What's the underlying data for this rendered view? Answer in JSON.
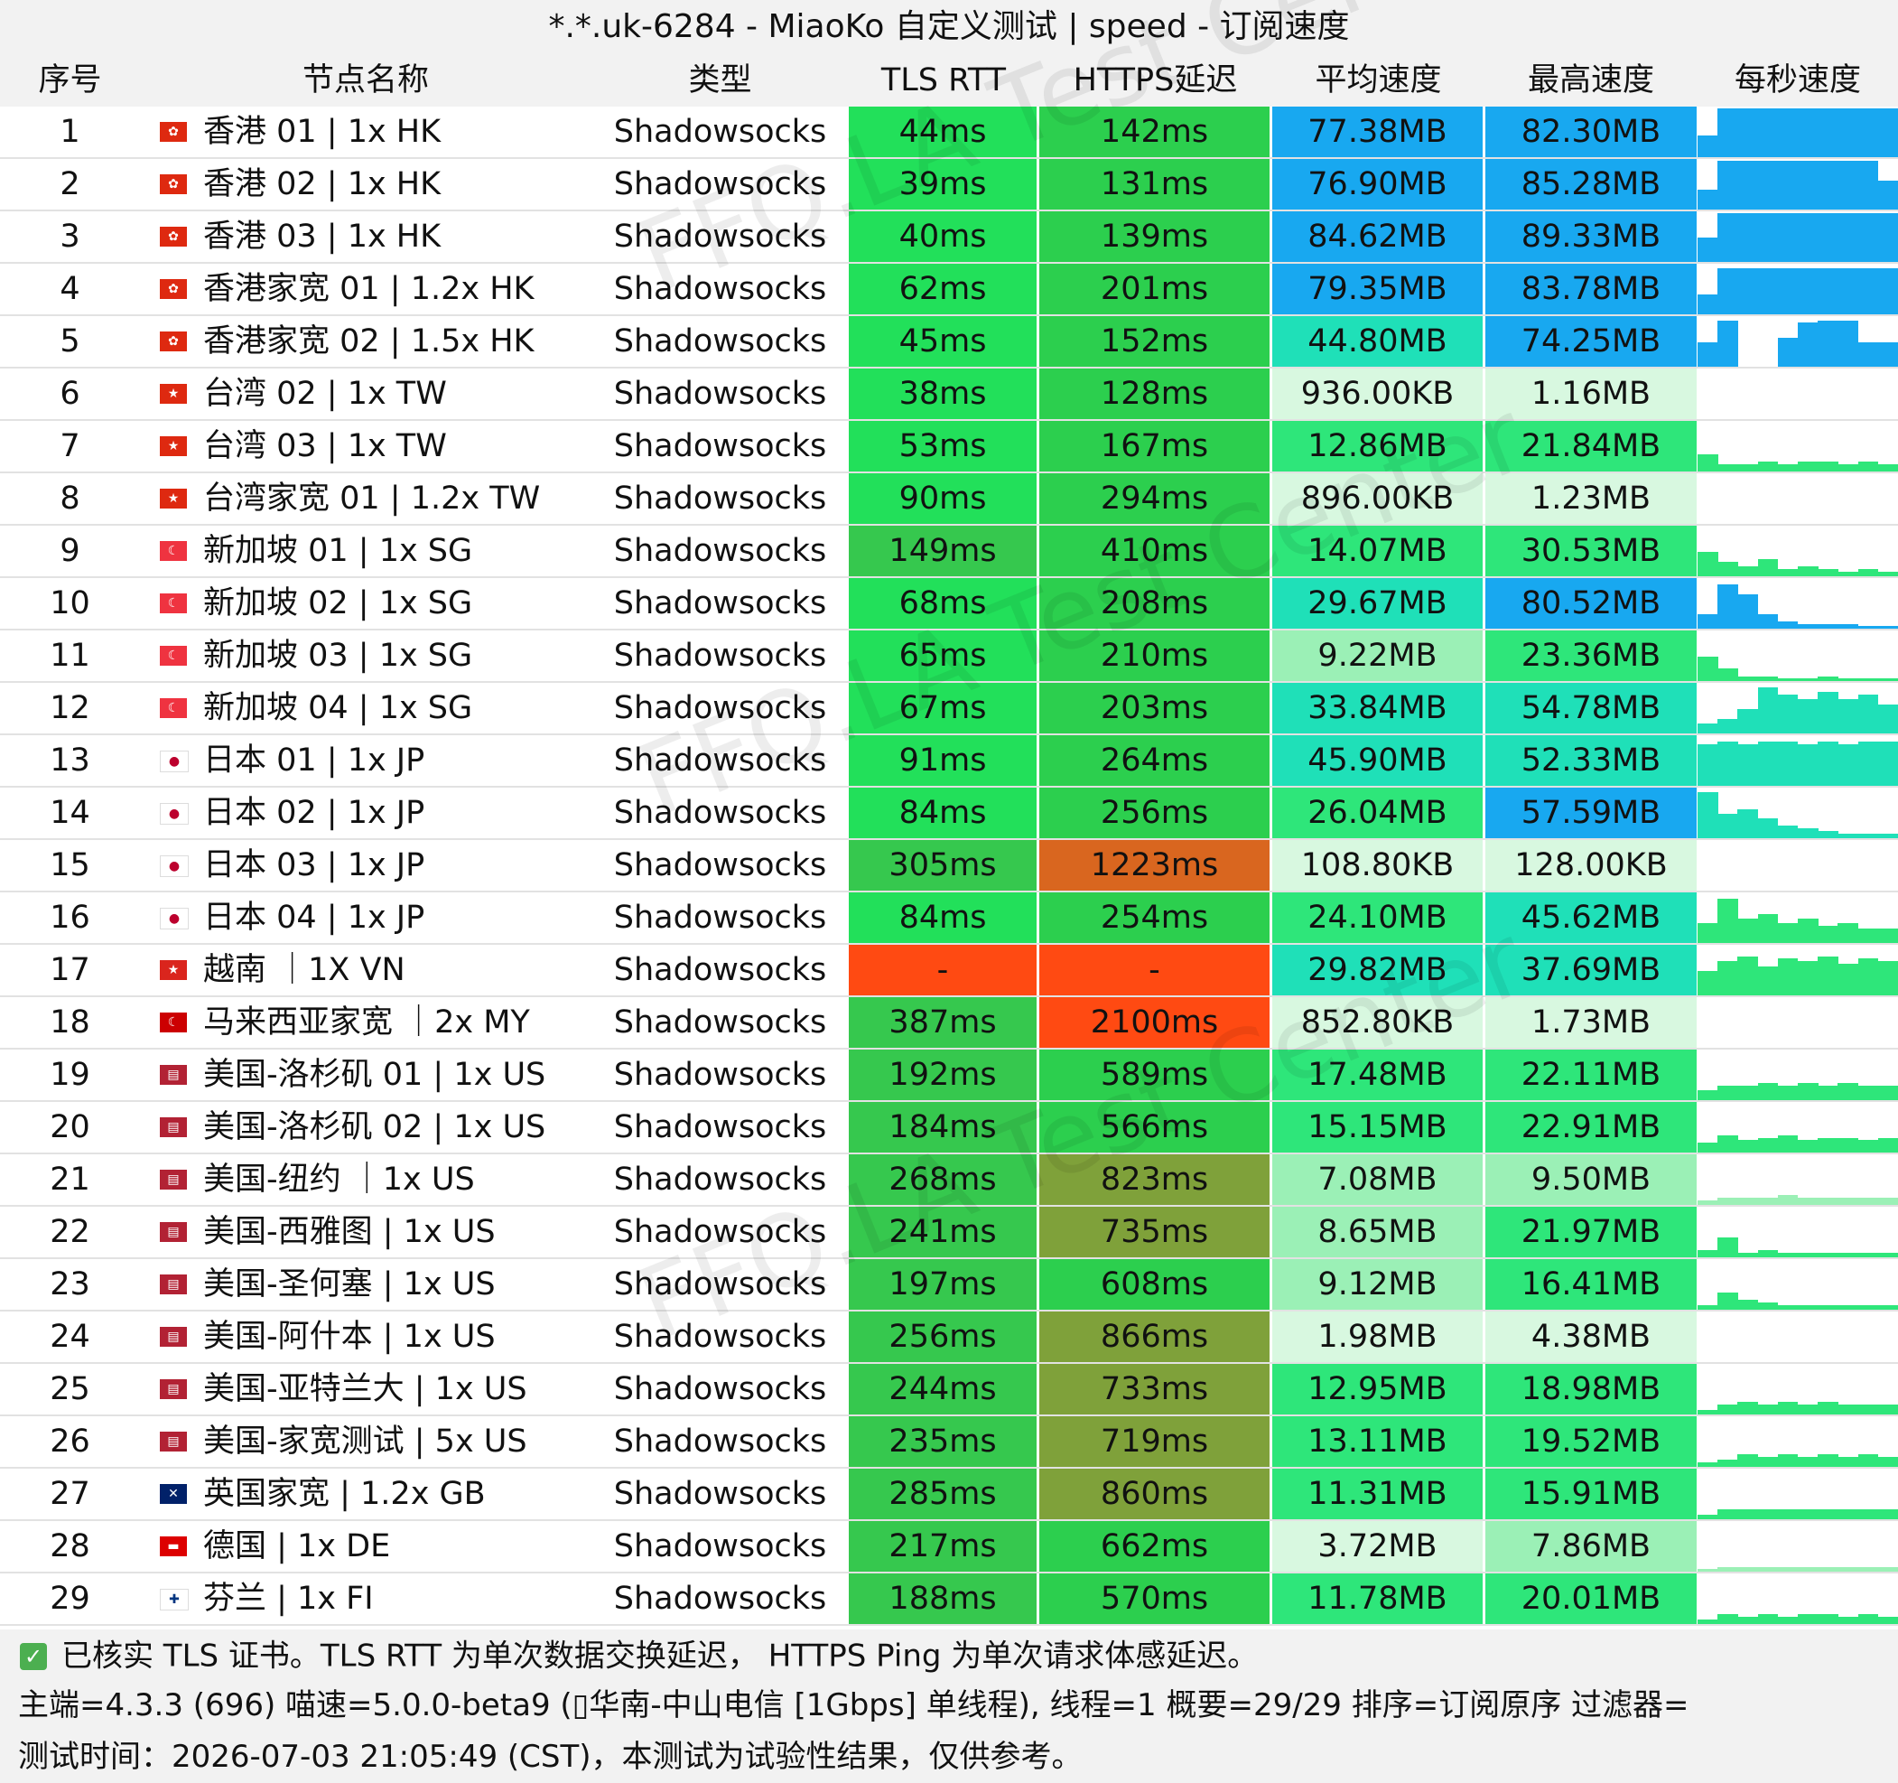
{
  "title": "*.*.uk-6284 - MiaoKo 自定义测试 | speed - 订阅速度",
  "watermark": "FFQ.LA Test Center",
  "columns": [
    "序号",
    "节点名称",
    "类型",
    "TLS RTT",
    "HTTPS延迟",
    "平均速度",
    "最高速度",
    "每秒速度"
  ],
  "colors": {
    "tls_green": "#22e05a",
    "tls_green_dark": "#36c84e",
    "https_green": "#2ccf4e",
    "https_olive": "#7fa13a",
    "https_orange": "#d9661f",
    "error_red": "#ff4a12",
    "speed_blue": "#18a8f0",
    "speed_teal": "#1fe0b8",
    "speed_green": "#2ee67a",
    "speed_light": "#9bf0b6",
    "speed_pale": "#d8f8e0"
  },
  "rows": [
    {
      "idx": "1",
      "flag": "HK",
      "name": "香港 01 | 1x HK",
      "type": "Shadowsocks",
      "tls": "44ms",
      "https": "142ms",
      "avg": "77.38MB",
      "max": "82.30MB",
      "tls_c": "tls_green",
      "https_c": "https_green",
      "avg_c": "speed_blue",
      "max_c": "speed_blue",
      "spark": [
        0.45,
        1,
        1,
        1,
        1,
        1,
        1,
        1,
        1,
        1
      ],
      "spark_c": "speed_blue"
    },
    {
      "idx": "2",
      "flag": "HK",
      "name": "香港 02 | 1x HK",
      "type": "Shadowsocks",
      "tls": "39ms",
      "https": "131ms",
      "avg": "76.90MB",
      "max": "85.28MB",
      "tls_c": "tls_green",
      "https_c": "https_green",
      "avg_c": "speed_blue",
      "max_c": "speed_blue",
      "spark": [
        0.4,
        1,
        1,
        1,
        1,
        1,
        1,
        1,
        1,
        0.6
      ],
      "spark_c": "speed_blue"
    },
    {
      "idx": "3",
      "flag": "HK",
      "name": "香港 03 | 1x HK",
      "type": "Shadowsocks",
      "tls": "40ms",
      "https": "139ms",
      "avg": "84.62MB",
      "max": "89.33MB",
      "tls_c": "tls_green",
      "https_c": "https_green",
      "avg_c": "speed_blue",
      "max_c": "speed_blue",
      "spark": [
        0.5,
        1,
        1,
        1,
        1,
        1,
        1,
        1,
        1,
        1
      ],
      "spark_c": "speed_blue"
    },
    {
      "idx": "4",
      "flag": "HK",
      "name": "香港家宽 01 | 1.2x HK",
      "type": "Shadowsocks",
      "tls": "62ms",
      "https": "201ms",
      "avg": "79.35MB",
      "max": "83.78MB",
      "tls_c": "tls_green",
      "https_c": "https_green",
      "avg_c": "speed_blue",
      "max_c": "speed_blue",
      "spark": [
        0.4,
        0.95,
        0.95,
        0.95,
        0.95,
        0.95,
        0.95,
        0.95,
        0.95,
        0.95
      ],
      "spark_c": "speed_blue"
    },
    {
      "idx": "5",
      "flag": "HK",
      "name": "香港家宽 02 | 1.5x HK",
      "type": "Shadowsocks",
      "tls": "45ms",
      "https": "152ms",
      "avg": "44.80MB",
      "max": "74.25MB",
      "tls_c": "tls_green",
      "https_c": "https_green",
      "avg_c": "speed_teal",
      "max_c": "speed_blue",
      "spark": [
        0.5,
        0.95,
        0,
        0,
        0.6,
        0.9,
        0.95,
        0.95,
        0.5,
        0.5
      ],
      "spark_c": "speed_blue"
    },
    {
      "idx": "6",
      "flag": "TW",
      "name": "台湾 02 | 1x TW",
      "type": "Shadowsocks",
      "tls": "38ms",
      "https": "128ms",
      "avg": "936.00KB",
      "max": "1.16MB",
      "tls_c": "tls_green",
      "https_c": "https_green",
      "avg_c": "speed_pale",
      "max_c": "speed_pale",
      "spark": [
        0,
        0,
        0,
        0,
        0,
        0,
        0,
        0,
        0,
        0
      ],
      "spark_c": "speed_pale"
    },
    {
      "idx": "7",
      "flag": "TW",
      "name": "台湾 03 | 1x TW",
      "type": "Shadowsocks",
      "tls": "53ms",
      "https": "167ms",
      "avg": "12.86MB",
      "max": "21.84MB",
      "tls_c": "tls_green",
      "https_c": "https_green",
      "avg_c": "speed_green",
      "max_c": "speed_green",
      "spark": [
        0.35,
        0.15,
        0.15,
        0.2,
        0.15,
        0.2,
        0.2,
        0.15,
        0.2,
        0.15
      ],
      "spark_c": "speed_green"
    },
    {
      "idx": "8",
      "flag": "TW",
      "name": "台湾家宽 01 | 1.2x TW",
      "type": "Shadowsocks",
      "tls": "90ms",
      "https": "294ms",
      "avg": "896.00KB",
      "max": "1.23MB",
      "tls_c": "tls_green",
      "https_c": "https_green",
      "avg_c": "speed_pale",
      "max_c": "speed_pale",
      "spark": [
        0,
        0,
        0,
        0,
        0,
        0,
        0,
        0,
        0,
        0
      ],
      "spark_c": "speed_pale"
    },
    {
      "idx": "9",
      "flag": "SG",
      "name": "新加坡 01 | 1x SG",
      "type": "Shadowsocks",
      "tls": "149ms",
      "https": "410ms",
      "avg": "14.07MB",
      "max": "30.53MB",
      "tls_c": "tls_green_dark",
      "https_c": "https_green",
      "avg_c": "speed_green",
      "max_c": "speed_green",
      "spark": [
        0.5,
        0.3,
        0.2,
        0.35,
        0.15,
        0.2,
        0.15,
        0.1,
        0.15,
        0.1
      ],
      "spark_c": "speed_green"
    },
    {
      "idx": "10",
      "flag": "SG",
      "name": "新加坡 02 | 1x SG",
      "type": "Shadowsocks",
      "tls": "68ms",
      "https": "208ms",
      "avg": "29.67MB",
      "max": "80.52MB",
      "tls_c": "tls_green",
      "https_c": "https_green",
      "avg_c": "speed_teal",
      "max_c": "speed_blue",
      "spark": [
        0.3,
        0.9,
        0.7,
        0.3,
        0.15,
        0.1,
        0.1,
        0.1,
        0.05,
        0.05
      ],
      "spark_c": "speed_blue"
    },
    {
      "idx": "11",
      "flag": "SG",
      "name": "新加坡 03 | 1x SG",
      "type": "Shadowsocks",
      "tls": "65ms",
      "https": "210ms",
      "avg": "9.22MB",
      "max": "23.36MB",
      "tls_c": "tls_green",
      "https_c": "https_green",
      "avg_c": "speed_light",
      "max_c": "speed_green",
      "spark": [
        0.5,
        0.25,
        0.1,
        0.1,
        0.05,
        0.05,
        0.1,
        0.05,
        0.05,
        0.05
      ],
      "spark_c": "speed_green"
    },
    {
      "idx": "12",
      "flag": "SG",
      "name": "新加坡 04 | 1x SG",
      "type": "Shadowsocks",
      "tls": "67ms",
      "https": "203ms",
      "avg": "33.84MB",
      "max": "54.78MB",
      "tls_c": "tls_green",
      "https_c": "https_green",
      "avg_c": "speed_teal",
      "max_c": "speed_teal",
      "spark": [
        0.2,
        0.3,
        0.5,
        0.95,
        0.8,
        0.7,
        0.85,
        0.7,
        0.8,
        0.6
      ],
      "spark_c": "speed_teal"
    },
    {
      "idx": "13",
      "flag": "JP",
      "name": "日本 01 | 1x JP",
      "type": "Shadowsocks",
      "tls": "91ms",
      "https": "264ms",
      "avg": "45.90MB",
      "max": "52.33MB",
      "tls_c": "tls_green",
      "https_c": "https_green",
      "avg_c": "speed_teal",
      "max_c": "speed_teal",
      "spark": [
        0.85,
        0.9,
        0.85,
        0.9,
        0.9,
        0.85,
        0.9,
        0.85,
        0.9,
        0.9
      ],
      "spark_c": "speed_teal"
    },
    {
      "idx": "14",
      "flag": "JP",
      "name": "日本 02 | 1x JP",
      "type": "Shadowsocks",
      "tls": "84ms",
      "https": "256ms",
      "avg": "26.04MB",
      "max": "57.59MB",
      "tls_c": "tls_green",
      "https_c": "https_green",
      "avg_c": "speed_green",
      "max_c": "speed_blue",
      "spark": [
        0.95,
        0.5,
        0.6,
        0.4,
        0.25,
        0.2,
        0.15,
        0.1,
        0.1,
        0.1
      ],
      "spark_c": "speed_teal"
    },
    {
      "idx": "15",
      "flag": "JP",
      "name": "日本 03 | 1x JP",
      "type": "Shadowsocks",
      "tls": "305ms",
      "https": "1223ms",
      "avg": "108.80KB",
      "max": "128.00KB",
      "tls_c": "tls_green_dark",
      "https_c": "https_orange",
      "avg_c": "speed_pale",
      "max_c": "speed_pale",
      "spark": [
        0,
        0,
        0,
        0,
        0,
        0,
        0,
        0,
        0,
        0
      ],
      "spark_c": "speed_pale"
    },
    {
      "idx": "16",
      "flag": "JP",
      "name": "日本 04 | 1x JP",
      "type": "Shadowsocks",
      "tls": "84ms",
      "https": "254ms",
      "avg": "24.10MB",
      "max": "45.62MB",
      "tls_c": "tls_green",
      "https_c": "https_green",
      "avg_c": "speed_green",
      "max_c": "speed_teal",
      "spark": [
        0.4,
        0.9,
        0.5,
        0.6,
        0.4,
        0.5,
        0.35,
        0.4,
        0.3,
        0.3
      ],
      "spark_c": "speed_green"
    },
    {
      "idx": "17",
      "flag": "VN",
      "name": "越南 ｜1X VN",
      "type": "Shadowsocks",
      "tls": "-",
      "https": "-",
      "avg": "29.82MB",
      "max": "37.69MB",
      "tls_c": "error_red",
      "https_c": "error_red",
      "avg_c": "speed_teal",
      "max_c": "speed_teal",
      "spark": [
        0.5,
        0.7,
        0.8,
        0.6,
        0.75,
        0.7,
        0.8,
        0.65,
        0.75,
        0.7
      ],
      "spark_c": "speed_green"
    },
    {
      "idx": "18",
      "flag": "MY",
      "name": "马来西亚家宽 ｜2x MY",
      "type": "Shadowsocks",
      "tls": "387ms",
      "https": "2100ms",
      "avg": "852.80KB",
      "max": "1.73MB",
      "tls_c": "tls_green_dark",
      "https_c": "error_red",
      "avg_c": "speed_pale",
      "max_c": "speed_pale",
      "spark": [
        0,
        0,
        0,
        0,
        0,
        0,
        0,
        0,
        0,
        0
      ],
      "spark_c": "speed_pale"
    },
    {
      "idx": "19",
      "flag": "US",
      "name": "美国-洛杉矶 01 | 1x US",
      "type": "Shadowsocks",
      "tls": "192ms",
      "https": "589ms",
      "avg": "17.48MB",
      "max": "22.11MB",
      "tls_c": "tls_green_dark",
      "https_c": "https_green",
      "avg_c": "speed_green",
      "max_c": "speed_green",
      "spark": [
        0.2,
        0.3,
        0.3,
        0.35,
        0.3,
        0.35,
        0.3,
        0.35,
        0.3,
        0.3
      ],
      "spark_c": "speed_green"
    },
    {
      "idx": "20",
      "flag": "US",
      "name": "美国-洛杉矶 02 | 1x US",
      "type": "Shadowsocks",
      "tls": "184ms",
      "https": "566ms",
      "avg": "15.15MB",
      "max": "22.91MB",
      "tls_c": "tls_green_dark",
      "https_c": "https_green",
      "avg_c": "speed_green",
      "max_c": "speed_green",
      "spark": [
        0.2,
        0.35,
        0.25,
        0.3,
        0.35,
        0.25,
        0.3,
        0.3,
        0.25,
        0.3
      ],
      "spark_c": "speed_green"
    },
    {
      "idx": "21",
      "flag": "US",
      "name": "美国-纽约 ｜1x US",
      "type": "Shadowsocks",
      "tls": "268ms",
      "https": "823ms",
      "avg": "7.08MB",
      "max": "9.50MB",
      "tls_c": "tls_green_dark",
      "https_c": "https_olive",
      "avg_c": "speed_light",
      "max_c": "speed_light",
      "spark": [
        0.1,
        0.15,
        0.15,
        0.15,
        0.2,
        0.15,
        0.15,
        0.15,
        0.15,
        0.15
      ],
      "spark_c": "speed_light"
    },
    {
      "idx": "22",
      "flag": "US",
      "name": "美国-西雅图 | 1x US",
      "type": "Shadowsocks",
      "tls": "241ms",
      "https": "735ms",
      "avg": "8.65MB",
      "max": "21.97MB",
      "tls_c": "tls_green_dark",
      "https_c": "https_olive",
      "avg_c": "speed_light",
      "max_c": "speed_green",
      "spark": [
        0.15,
        0.4,
        0.1,
        0.15,
        0.1,
        0.1,
        0.1,
        0.1,
        0.1,
        0.1
      ],
      "spark_c": "speed_green"
    },
    {
      "idx": "23",
      "flag": "US",
      "name": "美国-圣何塞 | 1x US",
      "type": "Shadowsocks",
      "tls": "197ms",
      "https": "608ms",
      "avg": "9.12MB",
      "max": "16.41MB",
      "tls_c": "tls_green_dark",
      "https_c": "https_green",
      "avg_c": "speed_light",
      "max_c": "speed_green",
      "spark": [
        0.1,
        0.35,
        0.2,
        0.15,
        0.1,
        0.1,
        0.1,
        0.1,
        0.1,
        0.1
      ],
      "spark_c": "speed_green"
    },
    {
      "idx": "24",
      "flag": "US",
      "name": "美国-阿什本 | 1x US",
      "type": "Shadowsocks",
      "tls": "256ms",
      "https": "866ms",
      "avg": "1.98MB",
      "max": "4.38MB",
      "tls_c": "tls_green_dark",
      "https_c": "https_olive",
      "avg_c": "speed_pale",
      "max_c": "speed_pale",
      "spark": [
        0,
        0,
        0,
        0,
        0,
        0,
        0,
        0,
        0,
        0
      ],
      "spark_c": "speed_pale"
    },
    {
      "idx": "25",
      "flag": "US",
      "name": "美国-亚特兰大 | 1x US",
      "type": "Shadowsocks",
      "tls": "244ms",
      "https": "733ms",
      "avg": "12.95MB",
      "max": "18.98MB",
      "tls_c": "tls_green_dark",
      "https_c": "https_olive",
      "avg_c": "speed_green",
      "max_c": "speed_green",
      "spark": [
        0.1,
        0.2,
        0.25,
        0.2,
        0.25,
        0.2,
        0.25,
        0.2,
        0.2,
        0.2
      ],
      "spark_c": "speed_green"
    },
    {
      "idx": "26",
      "flag": "US",
      "name": "美国-家宽测试 | 5x US",
      "type": "Shadowsocks",
      "tls": "235ms",
      "https": "719ms",
      "avg": "13.11MB",
      "max": "19.52MB",
      "tls_c": "tls_green_dark",
      "https_c": "https_olive",
      "avg_c": "speed_green",
      "max_c": "speed_green",
      "spark": [
        0.1,
        0.15,
        0.25,
        0.2,
        0.25,
        0.2,
        0.25,
        0.2,
        0.25,
        0.2
      ],
      "spark_c": "speed_green"
    },
    {
      "idx": "27",
      "flag": "GB",
      "name": "英国家宽 | 1.2x GB",
      "type": "Shadowsocks",
      "tls": "285ms",
      "https": "860ms",
      "avg": "11.31MB",
      "max": "15.91MB",
      "tls_c": "tls_green_dark",
      "https_c": "https_olive",
      "avg_c": "speed_green",
      "max_c": "speed_green",
      "spark": [
        0.1,
        0.2,
        0.2,
        0.2,
        0.2,
        0.2,
        0.2,
        0.2,
        0.2,
        0.2
      ],
      "spark_c": "speed_green"
    },
    {
      "idx": "28",
      "flag": "DE",
      "name": "德国 | 1x DE",
      "type": "Shadowsocks",
      "tls": "217ms",
      "https": "662ms",
      "avg": "3.72MB",
      "max": "7.86MB",
      "tls_c": "tls_green_dark",
      "https_c": "https_green",
      "avg_c": "speed_pale",
      "max_c": "speed_light",
      "spark": [
        0.05,
        0.1,
        0.1,
        0.1,
        0.1,
        0.1,
        0.1,
        0.1,
        0.1,
        0.1
      ],
      "spark_c": "speed_light"
    },
    {
      "idx": "29",
      "flag": "FI",
      "name": "芬兰 | 1x FI",
      "type": "Shadowsocks",
      "tls": "188ms",
      "https": "570ms",
      "avg": "11.78MB",
      "max": "20.01MB",
      "tls_c": "tls_green_dark",
      "https_c": "https_green",
      "avg_c": "speed_green",
      "max_c": "speed_green",
      "spark": [
        0.1,
        0.2,
        0.15,
        0.2,
        0.15,
        0.2,
        0.2,
        0.15,
        0.2,
        0.15
      ],
      "spark_c": "speed_green"
    }
  ],
  "footer": {
    "tls_note": "已核实 TLS 证书。TLS RTT 为单次数据交换延迟， HTTPS Ping 为单次请求体感延迟。",
    "meta": "主端=4.3.3 (696) 喵速=5.0.0-beta9 (▯华南-中山电信 [1Gbps] 单线程), 线程=1 概要=29/29 排序=订阅原序 过滤器=",
    "test_time": "测试时间：2026-07-03 21:05:49 (CST)，本测试为试验性结果，仅供参考。"
  },
  "flags": {
    "HK": {
      "bg": "#de2910",
      "glyph": "✿"
    },
    "TW": {
      "bg": "#de2910",
      "glyph": "★"
    },
    "SG": {
      "bg": "#ef3340",
      "glyph": "☾"
    },
    "JP": {
      "bg": "#ffffff",
      "glyph": "●"
    },
    "VN": {
      "bg": "#da251d",
      "glyph": "★"
    },
    "MY": {
      "bg": "#cc0001",
      "glyph": "☾"
    },
    "US": {
      "bg": "#b22234",
      "glyph": "▤"
    },
    "GB": {
      "bg": "#012169",
      "glyph": "✕"
    },
    "DE": {
      "bg": "#dd0000",
      "glyph": "▬"
    },
    "FI": {
      "bg": "#ffffff",
      "glyph": "✚"
    }
  }
}
